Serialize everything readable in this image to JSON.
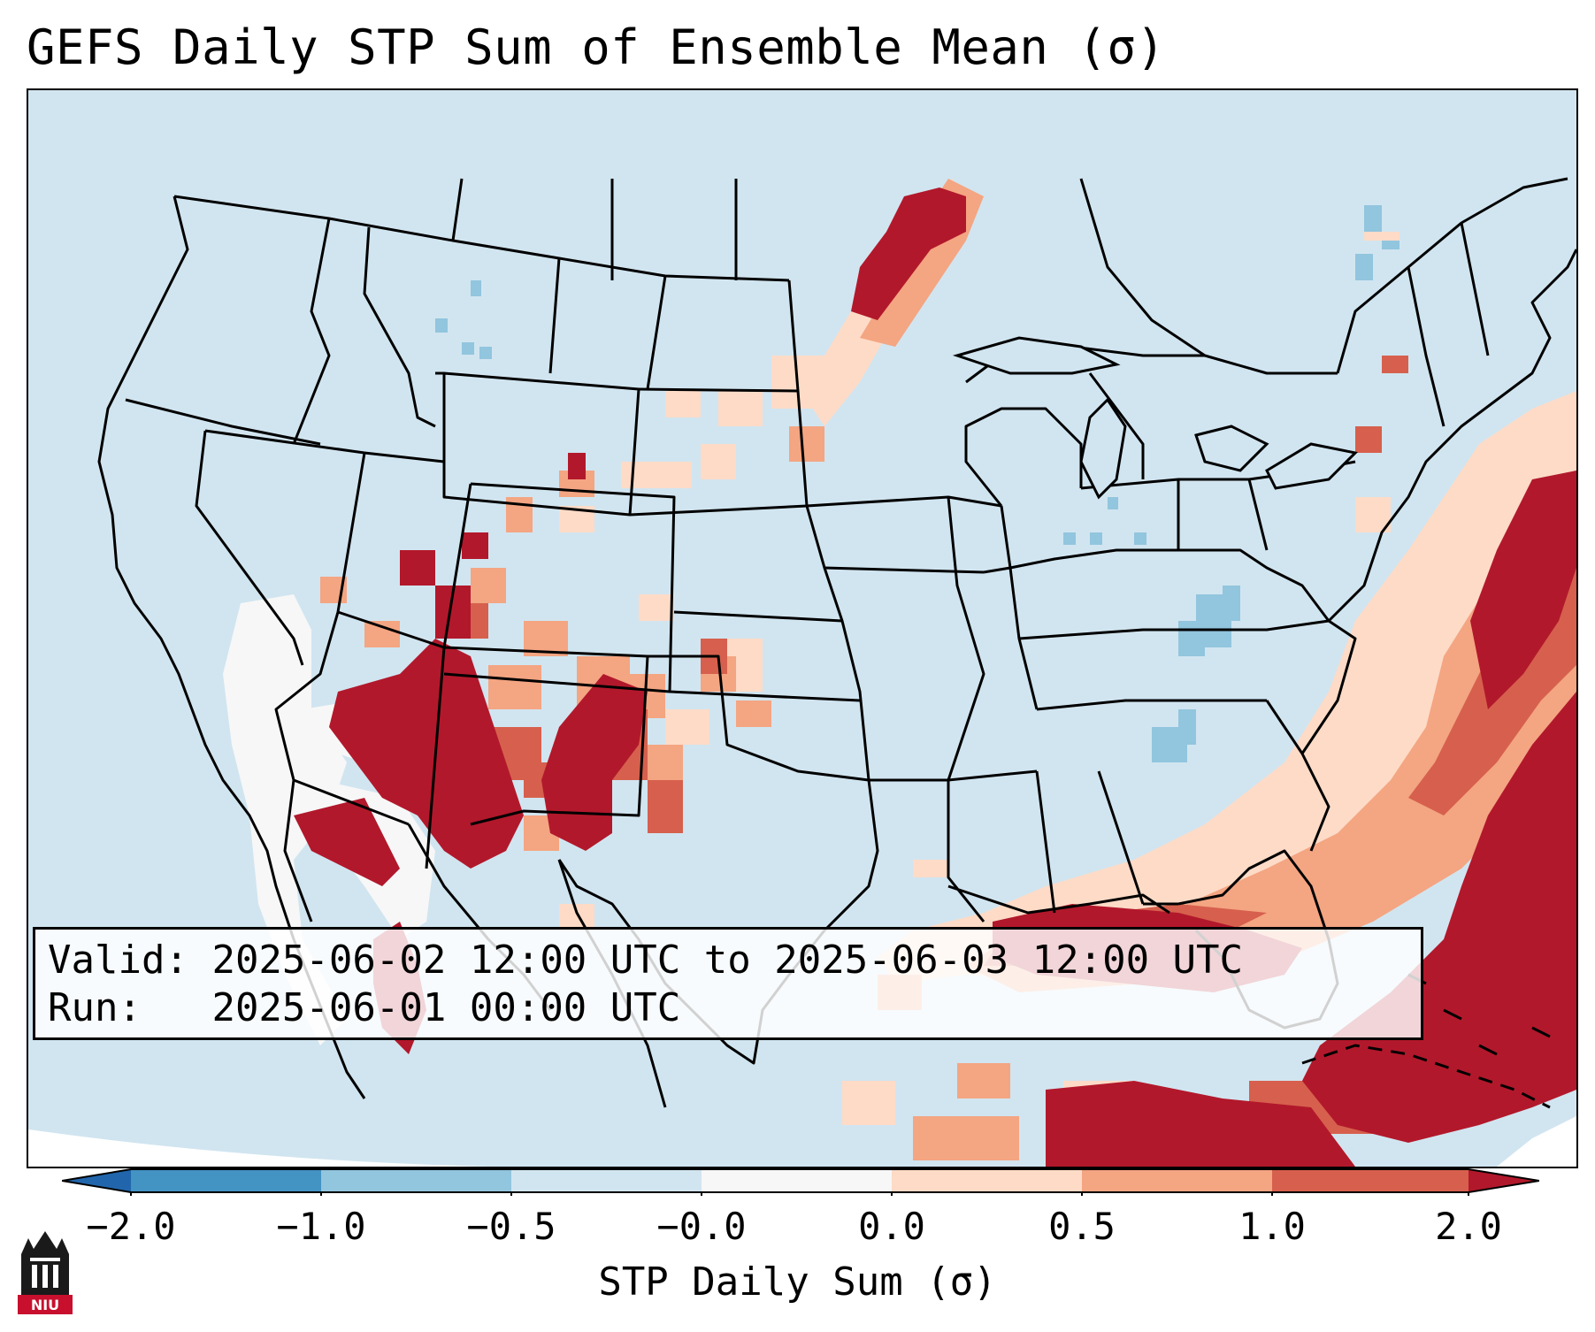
{
  "title": "GEFS Daily STP Sum of Ensemble Mean (σ)",
  "info": {
    "valid_label": "Valid:",
    "valid_value": "2025-06-02 12:00 UTC to 2025-06-03 12:00 UTC",
    "run_label": "Run:",
    "run_value": "2025-06-01 00:00 UTC"
  },
  "colorbar": {
    "label": "STP Daily Sum (σ)",
    "ticks": [
      "−2.0",
      "−1.0",
      "−0.5",
      "−0.0",
      "0.0",
      "0.5",
      "1.0",
      "2.0"
    ],
    "colors": [
      "#2166ac",
      "#4393c3",
      "#92c5de",
      "#d1e5f0",
      "#f7f7f7",
      "#fddbc7",
      "#f4a582",
      "#d6604d",
      "#b2182b"
    ]
  },
  "logo": {
    "text": "NIU"
  }
}
